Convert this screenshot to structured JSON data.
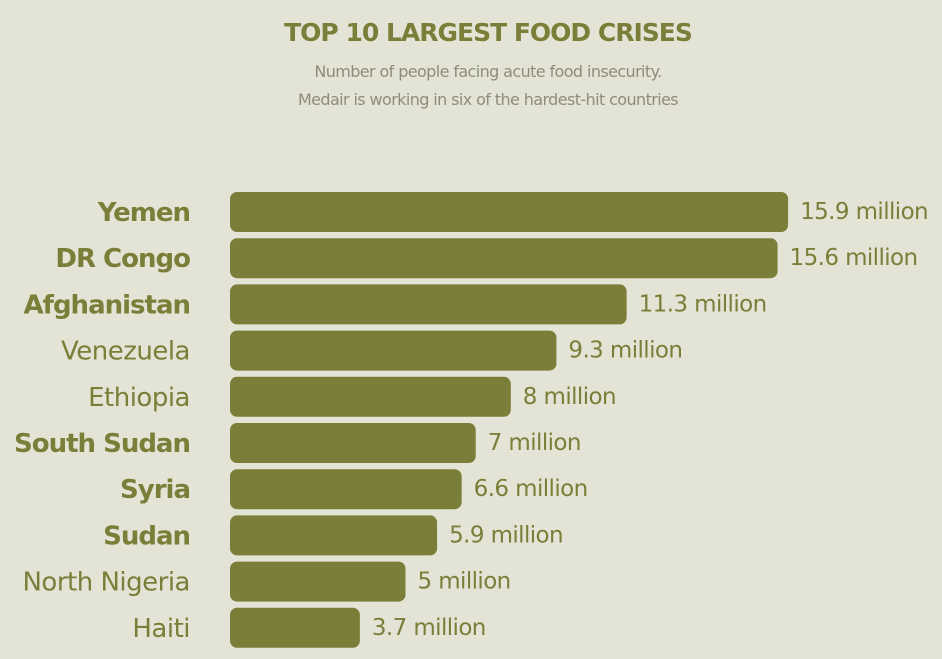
{
  "chart_data": {
    "type": "bar",
    "orientation": "horizontal",
    "title": "TOP 10 LARGEST FOOD CRISES",
    "subtitle": [
      "Number of people facing acute food insecurity.",
      "Medair is working in six of the hardest-hit countries"
    ],
    "unit": "million",
    "categories": [
      "Yemen",
      "DR Congo",
      "Afghanistan",
      "Venezuela",
      "Ethiopia",
      "South Sudan",
      "Syria",
      "Sudan",
      "North Nigeria",
      "Haiti"
    ],
    "values": [
      15.9,
      15.6,
      11.3,
      9.3,
      8,
      7,
      6.6,
      5.9,
      5,
      3.7
    ],
    "value_labels": [
      "15.9 million",
      "15.6 million",
      "11.3 million",
      "9.3 million",
      "8 million",
      "7 million",
      "6.6 million",
      "5.9 million",
      "5 million",
      "3.7 million"
    ],
    "highlighted_categories": [
      "Yemen",
      "DR Congo",
      "Afghanistan",
      "South Sudan",
      "Syria",
      "Sudan"
    ],
    "xlim": [
      0,
      16
    ],
    "grid": false,
    "legend": "none",
    "colors": {
      "bar": "#7b7e38",
      "background": "#e4e4d6",
      "text": "#7b7e38",
      "subtitle": "#8d8d79"
    }
  }
}
